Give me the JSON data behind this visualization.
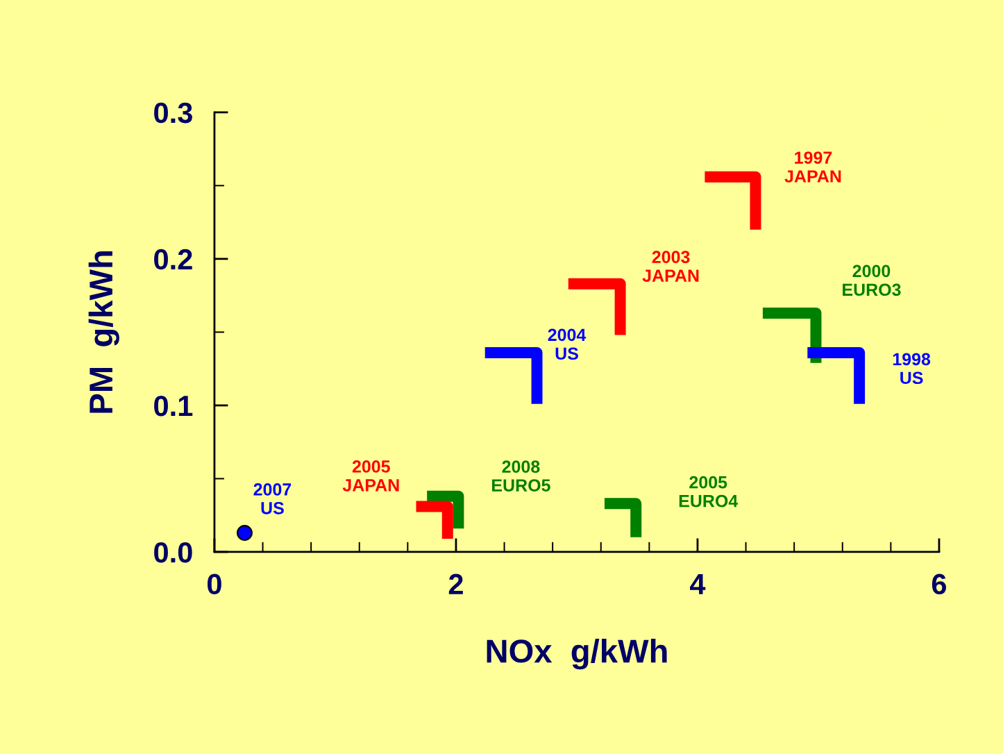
{
  "chart_data": {
    "type": "line",
    "xlabel": "NOx  g/kWh",
    "ylabel": "PM  g/kWh",
    "xlim": [
      0,
      6
    ],
    "ylim": [
      0,
      0.3
    ],
    "xticks": [
      0,
      {
        "value": 0.4,
        "label": null
      },
      {
        "value": 0.8,
        "label": null
      },
      {
        "value": 1.2,
        "label": null
      },
      {
        "value": 1.6,
        "label": null
      },
      2,
      {
        "value": 2.4,
        "label": null
      },
      {
        "value": 2.8,
        "label": null
      },
      {
        "value": 3.2,
        "label": null
      },
      {
        "value": 3.6,
        "label": null
      },
      4,
      {
        "value": 4.4,
        "label": null
      },
      {
        "value": 4.8,
        "label": null
      },
      {
        "value": 5.2,
        "label": null
      },
      {
        "value": 5.6,
        "label": null
      },
      6
    ],
    "yticks": [
      {
        "value": 0,
        "label": "0.0"
      },
      {
        "value": 0.05,
        "label": null
      },
      0.1,
      {
        "value": 0.15,
        "label": null
      },
      0.2,
      {
        "value": 0.25,
        "label": null
      },
      0.3
    ],
    "grid": false,
    "legend": false,
    "line_style": "solid",
    "series": [
      {
        "name": "2000\nEURO3",
        "color": "#008000",
        "x": [
          4.54,
          4.98,
          4.98
        ],
        "values": [
          0.163,
          0.163,
          0.129
        ]
      },
      {
        "name": "2005\nEURO4",
        "color": "#008000",
        "x": [
          3.23,
          3.49,
          3.49
        ],
        "values": [
          0.033,
          0.033,
          0.01
        ]
      },
      {
        "name": "2008\nEURO5",
        "color": "#008000",
        "x": [
          1.76,
          2.02,
          2.02
        ],
        "values": [
          0.038,
          0.038,
          0.016
        ]
      },
      {
        "name": "1997\nJAPAN",
        "color": "#ff0000",
        "x": [
          4.06,
          4.48,
          4.48
        ],
        "values": [
          0.256,
          0.256,
          0.22
        ]
      },
      {
        "name": "2003\nJAPAN",
        "color": "#ff0000",
        "x": [
          2.93,
          3.36,
          3.36
        ],
        "values": [
          0.183,
          0.183,
          0.148
        ]
      },
      {
        "name": "2005\nJAPAN",
        "color": "#ff0000",
        "x": [
          1.67,
          1.93,
          1.93
        ],
        "values": [
          0.031,
          0.031,
          0.009
        ]
      },
      {
        "name": "1998\nUS",
        "color": "#0000ff",
        "x": [
          4.91,
          5.34,
          5.34
        ],
        "values": [
          0.136,
          0.136,
          0.101
        ]
      },
      {
        "name": "2004\nUS",
        "color": "#0000ff",
        "x": [
          2.24,
          2.67,
          2.67
        ],
        "values": [
          0.136,
          0.136,
          0.101
        ]
      },
      {
        "name": "2007\nUS",
        "color": "#0000ff",
        "type": "scatter",
        "marker": "circle",
        "x": [
          0.25
        ],
        "values": [
          0.013
        ]
      }
    ]
  }
}
